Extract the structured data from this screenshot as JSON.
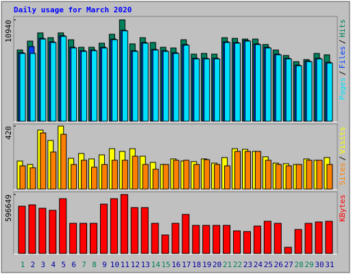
{
  "chart_data": [
    {
      "type": "bar",
      "title": "Daily usage for March 2020",
      "legend_separator": "/",
      "ylim": [
        0,
        10940
      ],
      "yticks": [
        10940
      ],
      "series": [
        {
          "name": "Hits",
          "color": "#00805c",
          "values": [
            7688,
            8649,
            9536,
            9018,
            9536,
            8797,
            7983,
            7983,
            8427,
            9388,
            10940,
            8353,
            9018,
            8501,
            7983,
            7909,
            8797,
            7244,
            7318,
            7244,
            9018,
            8944,
            8870,
            8870,
            8279,
            7688,
            7096,
            6431,
            6653,
            7318,
            7170
          ]
        },
        {
          "name": "Files",
          "color": "#0040ff",
          "values": [
            7400,
            8057,
            8950,
            8580,
            9240,
            7990,
            7620,
            7690,
            7990,
            8870,
            9830,
            7620,
            8500,
            7760,
            7620,
            7400,
            8280,
            6800,
            6800,
            6800,
            8580,
            8500,
            8720,
            8350,
            7990,
            7250,
            6800,
            6060,
            6500,
            6800,
            6360
          ]
        },
        {
          "name": "Pages",
          "color": "#00e0ff",
          "values": [
            7318,
            7318,
            8870,
            8501,
            9166,
            7909,
            7540,
            7614,
            7909,
            8797,
            9757,
            7540,
            8427,
            7688,
            7540,
            7318,
            8205,
            6727,
            6727,
            6727,
            8501,
            8427,
            8649,
            8279,
            7909,
            7170,
            6727,
            5988,
            6431,
            6727,
            6283
          ]
        }
      ]
    },
    {
      "type": "bar",
      "legend_separator": "/",
      "ylim": [
        0,
        420
      ],
      "yticks": [
        420
      ],
      "series": [
        {
          "name": "Visits",
          "color": "#ffff00",
          "values": [
            187,
            164,
            393,
            324,
            420,
            205,
            237,
            201,
            228,
            269,
            251,
            269,
            219,
            178,
            164,
            201,
            187,
            183,
            201,
            173,
            210,
            269,
            265,
            251,
            215,
            173,
            169,
            164,
            201,
            192,
            210
          ]
        },
        {
          "name": "Sites",
          "color": "#ff8000",
          "values": [
            155,
            142,
            374,
            247,
            365,
            164,
            192,
            146,
            164,
            192,
            192,
            219,
            164,
            132,
            164,
            192,
            192,
            164,
            196,
            164,
            155,
            251,
            251,
            251,
            192,
            164,
            155,
            164,
            192,
            192,
            164
          ]
        }
      ]
    },
    {
      "type": "bar",
      "ylim": [
        0,
        596649
      ],
      "yticks": [
        596649
      ],
      "categories": [
        "1",
        "2",
        "3",
        "4",
        "5",
        "6",
        "7",
        "8",
        "9",
        "10",
        "11",
        "12",
        "13",
        "14",
        "15",
        "16",
        "17",
        "18",
        "19",
        "20",
        "21",
        "22",
        "23",
        "24",
        "25",
        "26",
        "27",
        "28",
        "29",
        "30",
        "31"
      ],
      "category_colors": [
        "#00805c",
        "#0000a0",
        "#0000a0",
        "#0000a0",
        "#0000a0",
        "#0000a0",
        "#00805c",
        "#00805c",
        "#0000a0",
        "#0000a0",
        "#0000a0",
        "#0000a0",
        "#0000a0",
        "#00805c",
        "#00805c",
        "#0000a0",
        "#0000a0",
        "#0000a0",
        "#0000a0",
        "#0000a0",
        "#00805c",
        "#00805c",
        "#0000a0",
        "#0000a0",
        "#0000a0",
        "#0000a0",
        "#0000a0",
        "#00805c",
        "#00805c",
        "#0000a0",
        "#0000a0"
      ],
      "series": [
        {
          "name": "KBytes",
          "color": "#ff0000",
          "values": [
            478700,
            492600,
            457900,
            437100,
            555000,
            305300,
            305300,
            305300,
            499500,
            555000,
            596649,
            464800,
            464800,
            305300,
            187300,
            305300,
            395500,
            284500,
            284500,
            284500,
            284500,
            229000,
            222000,
            277500,
            326100,
            305300,
            62400,
            242800,
            305300,
            319100,
            326100
          ]
        }
      ]
    }
  ]
}
